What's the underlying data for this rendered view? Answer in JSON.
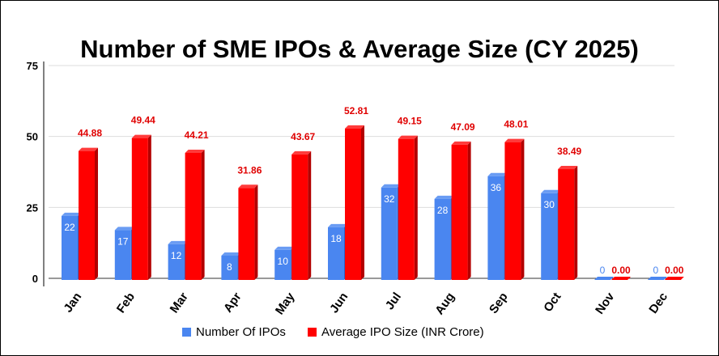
{
  "chart_data": {
    "type": "bar",
    "title": "Number of SME IPOs & Average Size (CY 2025)",
    "categories": [
      "Jan",
      "Feb",
      "Mar",
      "Apr",
      "May",
      "Jun",
      "Jul",
      "Aug",
      "Sep",
      "Oct",
      "Nov",
      "Dec"
    ],
    "series": [
      {
        "name": "Number Of IPOs",
        "color": "#4a86f0",
        "values": [
          22,
          17,
          12,
          8,
          10,
          18,
          32,
          28,
          36,
          30,
          0,
          0
        ],
        "labels": [
          "22",
          "17",
          "12",
          "8",
          "10",
          "18",
          "32",
          "28",
          "36",
          "30",
          "0",
          "0"
        ]
      },
      {
        "name": "Average IPO Size (INR Crore)",
        "color": "#ff0000",
        "values": [
          44.88,
          49.44,
          44.21,
          31.86,
          43.67,
          52.81,
          49.15,
          47.09,
          48.01,
          38.49,
          0,
          0
        ],
        "labels": [
          "44.88",
          "49.44",
          "44.21",
          "31.86",
          "43.67",
          "52.81",
          "49.15",
          "47.09",
          "48.01",
          "38.49",
          "0.00",
          "0.00"
        ]
      }
    ],
    "ylim": [
      0,
      75
    ],
    "yticks": [
      "0",
      "25",
      "50",
      "75"
    ],
    "grid": true,
    "legend": "bottom",
    "style": "3d-bar"
  }
}
